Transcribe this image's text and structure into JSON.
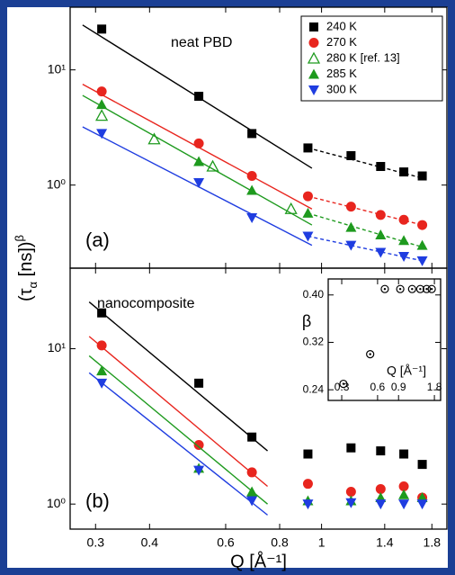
{
  "chart_data": [
    {
      "type": "scatter",
      "xlog": true,
      "ylog": true,
      "xlim": [
        0.262,
        1.95
      ],
      "ylim": [
        0.19,
        35
      ],
      "yticks": [
        {
          "value": 10,
          "label": "10¹"
        },
        {
          "value": 1,
          "label": "10⁰"
        }
      ],
      "annotation": "neat PBD",
      "panel_label": "(a)",
      "legend": "upper right",
      "series": [
        {
          "name": "240 K",
          "color": "#000000",
          "marker": "square",
          "x": [
            0.31,
            0.52,
            0.69,
            0.93,
            1.17,
            1.37,
            1.55,
            1.71
          ],
          "values": [
            22.6,
            5.9,
            2.8,
            2.1,
            1.8,
            1.45,
            1.3,
            1.2
          ],
          "fit": {
            "x": [
              0.28,
              0.95
            ],
            "values": [
              24.5,
              1.4
            ]
          },
          "fit_dashed": {
            "x": [
              0.93,
              1.71
            ],
            "values": [
              2.1,
              1.15
            ]
          }
        },
        {
          "name": "270 K",
          "color": "#e8251e",
          "marker": "circle",
          "x": [
            0.31,
            0.52,
            0.69,
            0.93,
            1.17,
            1.37,
            1.55,
            1.71
          ],
          "values": [
            6.5,
            2.3,
            1.2,
            0.8,
            0.65,
            0.55,
            0.5,
            0.45
          ],
          "fit": {
            "x": [
              0.28,
              0.95
            ],
            "values": [
              7.5,
              0.62
            ]
          },
          "fit_dashed": {
            "x": [
              0.93,
              1.71
            ],
            "values": [
              0.8,
              0.45
            ]
          }
        },
        {
          "name": "280 K [ref. 13]",
          "color": "#1e9a1e",
          "marker": "triangle-open",
          "x": [
            0.31,
            0.41,
            0.56,
            0.85
          ],
          "values": [
            4.0,
            2.5,
            1.45,
            0.62
          ]
        },
        {
          "name": "285 K",
          "color": "#1e9a1e",
          "marker": "triangle",
          "x": [
            0.31,
            0.52,
            0.69,
            0.93,
            1.17,
            1.37,
            1.55,
            1.71
          ],
          "values": [
            5.0,
            1.6,
            0.9,
            0.57,
            0.43,
            0.37,
            0.33,
            0.3
          ],
          "fit": {
            "x": [
              0.28,
              0.95
            ],
            "values": [
              6.0,
              0.45
            ]
          },
          "fit_dashed": {
            "x": [
              0.93,
              1.71
            ],
            "values": [
              0.57,
              0.29
            ]
          }
        },
        {
          "name": "300 K",
          "color": "#1f3de0",
          "marker": "triangle-down",
          "x": [
            0.31,
            0.52,
            0.69,
            0.93,
            1.17,
            1.37,
            1.55,
            1.71
          ],
          "values": [
            2.8,
            1.05,
            0.52,
            0.36,
            0.3,
            0.26,
            0.24,
            0.22
          ],
          "fit": {
            "x": [
              0.28,
              0.95
            ],
            "values": [
              3.2,
              0.3
            ]
          },
          "fit_dashed": {
            "x": [
              0.93,
              1.71
            ],
            "values": [
              0.36,
              0.22
            ]
          }
        }
      ]
    },
    {
      "type": "scatter",
      "xlog": true,
      "ylog": true,
      "xlim": [
        0.262,
        1.95
      ],
      "ylim": [
        0.69,
        33
      ],
      "xticks": [
        0.3,
        0.4,
        0.6,
        0.8,
        1,
        1.4,
        1.8
      ],
      "yticks": [
        {
          "value": 10,
          "label": "10¹"
        },
        {
          "value": 1,
          "label": "10⁰"
        }
      ],
      "x_label": "Q [Å⁻¹]",
      "y_label": {
        "base": "(τ",
        "sub": "α",
        "rest": " [ns])",
        "sup": "β"
      },
      "annotation": "nanocomposite",
      "panel_label": "(b)",
      "series": [
        {
          "color": "#000000",
          "marker": "square",
          "x": [
            0.31,
            0.52,
            0.69,
            0.93,
            1.17,
            1.37,
            1.55,
            1.71
          ],
          "values": [
            17,
            6.0,
            2.7,
            2.1,
            2.3,
            2.2,
            2.1,
            1.8
          ],
          "fit": {
            "x": [
              0.29,
              0.75
            ],
            "values": [
              20,
              2.2
            ]
          }
        },
        {
          "color": "#e8251e",
          "marker": "circle",
          "x": [
            0.31,
            0.52,
            0.69,
            0.93,
            1.17,
            1.37,
            1.55,
            1.71
          ],
          "values": [
            10.5,
            2.4,
            1.6,
            1.35,
            1.2,
            1.25,
            1.3,
            1.1
          ],
          "fit": {
            "x": [
              0.29,
              0.75
            ],
            "values": [
              12,
              1.3
            ]
          }
        },
        {
          "color": "#1e9a1e",
          "marker": "triangle",
          "x": [
            0.31,
            0.52,
            0.69,
            0.93,
            1.17,
            1.37,
            1.55,
            1.71
          ],
          "values": [
            7.2,
            1.7,
            1.2,
            1.05,
            1.05,
            1.1,
            1.15,
            1.1
          ],
          "fit": {
            "x": [
              0.29,
              0.75
            ],
            "values": [
              9,
              1.0
            ]
          }
        },
        {
          "color": "#1f3de0",
          "marker": "triangle-down",
          "x": [
            0.31,
            0.52,
            0.69,
            0.93,
            1.17,
            1.37,
            1.55,
            1.71
          ],
          "values": [
            6.0,
            1.65,
            1.05,
            1.0,
            1.02,
            1.0,
            1.0,
            1.0
          ],
          "fit": {
            "x": [
              0.29,
              0.75
            ],
            "values": [
              7,
              0.85
            ]
          }
        }
      ]
    },
    {
      "type": "scatter",
      "xlog": true,
      "xlim": [
        0.231,
        2.03
      ],
      "ylim": [
        0.222,
        0.427
      ],
      "xticks": [
        0.3,
        0.6,
        0.9,
        1.8
      ],
      "yticks": [
        0.24,
        0.32,
        {
          "value": 0.4,
          "label": "0.40"
        }
      ],
      "x_label": "Q [Å⁻¹]",
      "y_label": "β",
      "series": [
        {
          "color": "#000000",
          "marker": "circle-dot",
          "x": [
            0.31,
            0.52,
            0.69,
            0.93,
            1.17,
            1.37,
            1.55,
            1.71
          ],
          "values": [
            0.25,
            0.3,
            0.41,
            0.41,
            0.41,
            0.41,
            0.41,
            0.41
          ]
        }
      ]
    }
  ]
}
